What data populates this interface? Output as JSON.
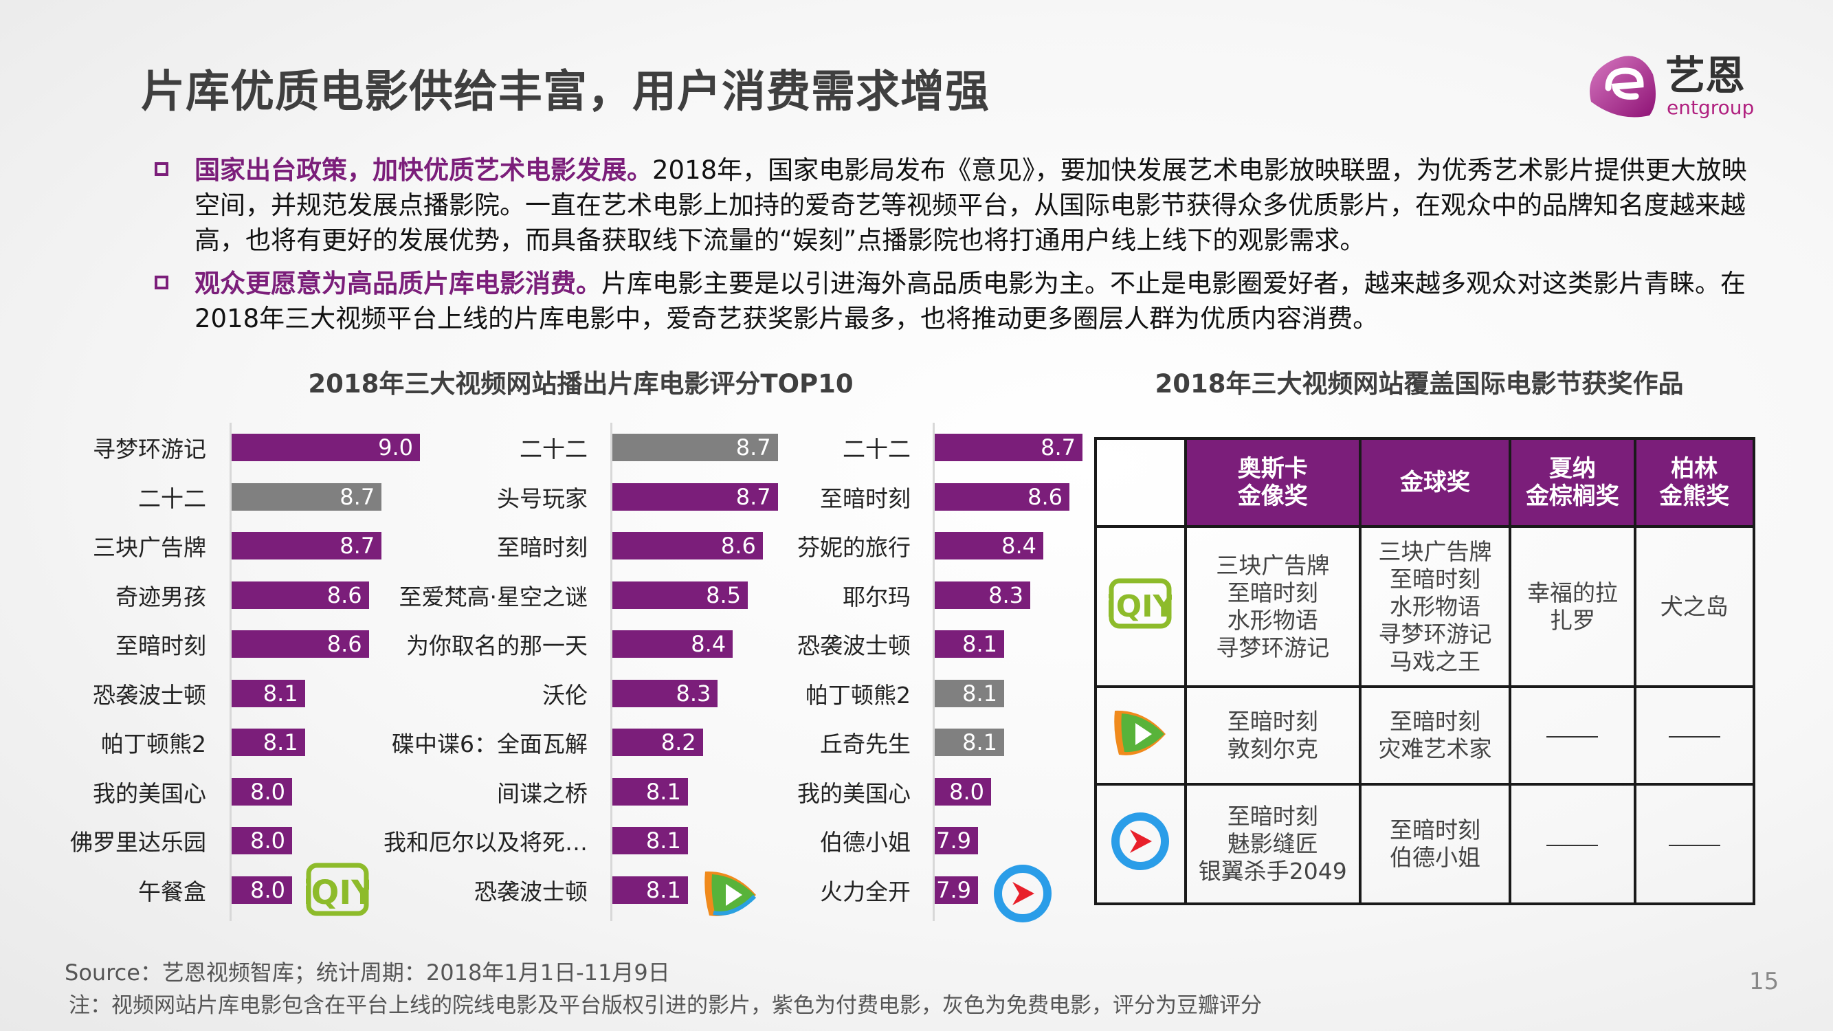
{
  "title": "片库优质电影供给丰富，用户消费需求增强",
  "logo": {
    "cn": "艺恩",
    "en": "entgroup",
    "color": "#b0207f"
  },
  "bullets": [
    {
      "highlight": "国家出台政策，加快优质艺术电影发展。",
      "text": "2018年，国家电影局发布《意见》，要加快发展艺术电影放映联盟，为优秀艺术影片提供更大放映空间，并规范发展点播影院。一直在艺术电影上加持的爱奇艺等视频平台，从国际电影节获得众多优质影片，在观众中的品牌知名度越来越高，也将有更好的发展优势，而具备获取线下流量的“娱刻”点播影院也将打通用户线上线下的观影需求。"
    },
    {
      "highlight": "观众更愿意为高品质片库电影消费。",
      "text": "片库电影主要是以引进海外高品质电影为主。不止是电影圈爱好者，越来越多观众对这类影片青睐。在2018年三大视频平台上线的片库电影中，爱奇艺获奖影片最多，也将推动更多圈层人群为优质内容消费。"
    }
  ],
  "colors": {
    "paid": "#7b1e7a",
    "free": "#808080"
  },
  "chart_title": "2018年三大视频网站播出片库电影评分TOP10",
  "table_title": "2018年三大视频网站覆盖国际电影节获奖作品",
  "chart_data": [
    {
      "type": "bar",
      "orientation": "horizontal",
      "platform": "iqiyi",
      "categories": [
        "寻梦环游记",
        "二十二",
        "三块广告牌",
        "奇迹男孩",
        "至暗时刻",
        "恐袭波士顿",
        "帕丁顿熊2",
        "我的美国心",
        "佛罗里达乐园",
        "午餐盒"
      ],
      "values": [
        9.0,
        8.7,
        8.7,
        8.6,
        8.6,
        8.1,
        8.1,
        8.0,
        8.0,
        8.0
      ],
      "value_labels": [
        "9.0",
        "8.7",
        "8.7",
        "8.6",
        "8.6",
        "8.1",
        "8.1",
        "8.0",
        "8.0",
        "8.0"
      ],
      "type_per_bar": [
        "paid",
        "free",
        "paid",
        "paid",
        "paid",
        "paid",
        "paid",
        "paid",
        "paid",
        "paid"
      ]
    },
    {
      "type": "bar",
      "orientation": "horizontal",
      "platform": "tencent",
      "categories": [
        "二十二",
        "头号玩家",
        "至暗时刻",
        "至爱梵高·星空之谜",
        "为你取名的那一天",
        "沃伦",
        "碟中谍6：全面瓦解",
        "间谍之桥",
        "我和厄尔以及将死…",
        "恐袭波士顿"
      ],
      "values": [
        8.7,
        8.7,
        8.6,
        8.5,
        8.4,
        8.3,
        8.2,
        8.1,
        8.1,
        8.1
      ],
      "value_labels": [
        "8.7",
        "8.7",
        "8.6",
        "8.5",
        "8.4",
        "8.3",
        "8.2",
        "8.1",
        "8.1",
        "8.1"
      ],
      "type_per_bar": [
        "free",
        "paid",
        "paid",
        "paid",
        "paid",
        "paid",
        "paid",
        "paid",
        "paid",
        "paid"
      ]
    },
    {
      "type": "bar",
      "orientation": "horizontal",
      "platform": "youku",
      "categories": [
        "二十二",
        "至暗时刻",
        "芬妮的旅行",
        "耶尔玛",
        "恐袭波士顿",
        "帕丁顿熊2",
        "丘奇先生",
        "我的美国心",
        "伯德小姐",
        "火力全开"
      ],
      "values": [
        8.7,
        8.6,
        8.4,
        8.3,
        8.1,
        8.1,
        8.1,
        8.0,
        7.9,
        7.9
      ],
      "value_labels": [
        "8.7",
        "8.6",
        "8.4",
        "8.3",
        "8.1",
        "8.1",
        "8.1",
        "8.0",
        "7.9",
        "7.9"
      ],
      "type_per_bar": [
        "paid",
        "paid",
        "paid",
        "paid",
        "paid",
        "free",
        "free",
        "paid",
        "paid",
        "paid"
      ]
    }
  ],
  "awards_table": {
    "headers": [
      "奥斯卡\n金像奖",
      "金球奖",
      "夏纳\n金棕榈奖",
      "柏林\n金熊奖"
    ],
    "rows": [
      {
        "platform": "iqiyi",
        "cells": [
          "三块广告牌\n至暗时刻\n水形物语\n寻梦环游记",
          "三块广告牌\n至暗时刻\n水形物语\n寻梦环游记\n马戏之王",
          "幸福的拉\n扎罗",
          "犬之岛"
        ]
      },
      {
        "platform": "tencent",
        "cells": [
          "至暗时刻\n敦刻尔克",
          "至暗时刻\n灾难艺术家",
          "——",
          "——"
        ]
      },
      {
        "platform": "youku",
        "cells": [
          "至暗时刻\n魅影缝匠\n银翼杀手2049",
          "至暗时刻\n伯德小姐",
          "——",
          "——"
        ]
      }
    ]
  },
  "source": "Source：艺恩视频智库；统计周期：2018年1月1日-11月9日",
  "note": "注：视频网站片库电影包含在平台上线的院线电影及平台版权引进的影片，紫色为付费电影，灰色为免费电影，评分为豆瓣评分",
  "page_number": "15"
}
